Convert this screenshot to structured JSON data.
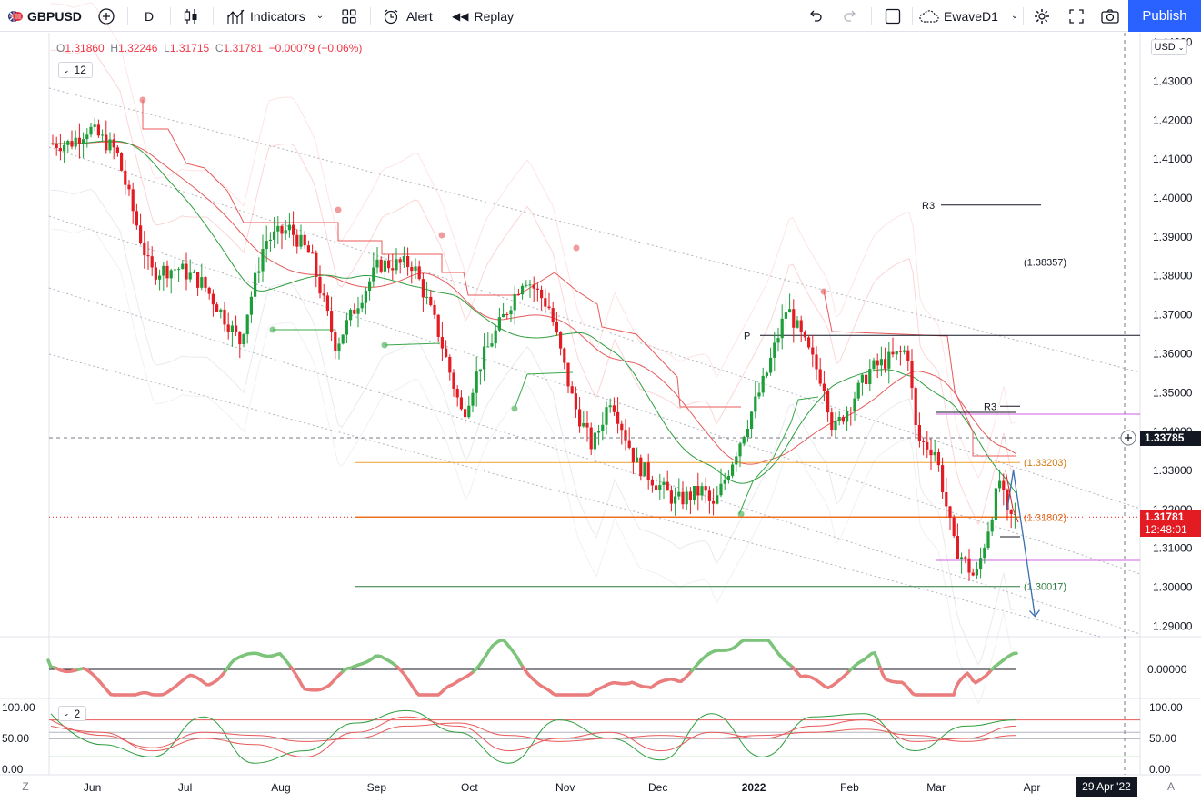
{
  "toolbar": {
    "symbol": "GBPUSD",
    "interval": "D",
    "indicators_label": "Indicators",
    "alert_label": "Alert",
    "replay_label": "Replay",
    "layout_name": "EwaveD1",
    "publish_label": "Publish"
  },
  "legend": {
    "o_label": "O",
    "o_value": "1.31860",
    "h_label": "H",
    "h_value": "1.32246",
    "l_label": "L",
    "l_value": "1.31715",
    "c_label": "C",
    "c_value": "1.31781",
    "change": "−0.00079 (−0.06%)",
    "indicator_count": "12",
    "pane2_count": "2"
  },
  "price_scale": {
    "currency": "USD",
    "crosshair_price": "1.33785",
    "last_price": "1.31781",
    "countdown": "12:48:01"
  },
  "time_scale": {
    "crosshair_date": "29 Apr '22",
    "left_button": "Z",
    "right_button": "A"
  },
  "colors": {
    "up": "#1e9e3a",
    "down": "#e31b23",
    "brand": "#2962ff",
    "orange": "#f0a030",
    "magenta": "#d060e0",
    "blue_arrow": "#3a6fb0"
  },
  "chart_data": [
    {
      "type": "candlestick",
      "title": "GBPUSD, D",
      "y_ticks": [
        "1.44000",
        "1.43000",
        "1.42000",
        "1.41000",
        "1.40000",
        "1.39000",
        "1.38000",
        "1.37000",
        "1.36000",
        "1.35000",
        "1.34000",
        "1.33000",
        "1.32000",
        "1.31000",
        "1.30000",
        "1.29000"
      ],
      "x_ticks": [
        "Jun",
        "Jul",
        "Aug",
        "Sep",
        "Oct",
        "Nov",
        "Dec",
        "2022",
        "Feb",
        "Mar",
        "Apr"
      ],
      "ylim": [
        1.2875,
        1.4425
      ],
      "grid": false,
      "close_path": [
        [
          "2021-05-26",
          1.414
        ],
        [
          "2021-06-01",
          1.418
        ],
        [
          "2021-06-10",
          1.412
        ],
        [
          "2021-06-17",
          1.392
        ],
        [
          "2021-06-21",
          1.381
        ],
        [
          "2021-06-30",
          1.382
        ],
        [
          "2021-07-08",
          1.378
        ],
        [
          "2021-07-20",
          1.363
        ],
        [
          "2021-07-28",
          1.389
        ],
        [
          "2021-08-05",
          1.392
        ],
        [
          "2021-08-12",
          1.385
        ],
        [
          "2021-08-20",
          1.362
        ],
        [
          "2021-08-27",
          1.373
        ],
        [
          "2021-09-03",
          1.383
        ],
        [
          "2021-09-14",
          1.383
        ],
        [
          "2021-09-22",
          1.366
        ],
        [
          "2021-09-30",
          1.344
        ],
        [
          "2021-10-06",
          1.358
        ],
        [
          "2021-10-20",
          1.38
        ],
        [
          "2021-10-28",
          1.372
        ],
        [
          "2021-11-05",
          1.347
        ],
        [
          "2021-11-11",
          1.336
        ],
        [
          "2021-11-17",
          1.349
        ],
        [
          "2021-11-25",
          1.332
        ],
        [
          "2021-12-08",
          1.322
        ],
        [
          "2021-12-17",
          1.325
        ],
        [
          "2021-12-20",
          1.32
        ],
        [
          "2022-01-06",
          1.354
        ],
        [
          "2022-01-13",
          1.372
        ],
        [
          "2022-01-25",
          1.352
        ],
        [
          "2022-01-28",
          1.34
        ],
        [
          "2022-02-09",
          1.356
        ],
        [
          "2022-02-21",
          1.361
        ],
        [
          "2022-02-24",
          1.338
        ],
        [
          "2022-03-02",
          1.335
        ],
        [
          "2022-03-08",
          1.311
        ],
        [
          "2022-03-15",
          1.302
        ],
        [
          "2022-03-23",
          1.328
        ],
        [
          "2022-03-25",
          1.318
        ]
      ],
      "horizontal_levels": [
        {
          "label": "R3",
          "value": 1.3982
        },
        {
          "label": "(1.38357)",
          "value": 1.38357
        },
        {
          "label": "P",
          "value": 1.3647
        },
        {
          "label": "R3",
          "value": 1.3465
        },
        {
          "label": "(1.33203)",
          "value": 1.33203
        },
        {
          "label": "(1.31802)",
          "value": 1.31802
        },
        {
          "label": "(1.30017)",
          "value": 1.30017
        }
      ],
      "projection": {
        "points": [
          [
            "2022-03-24",
            1.3198
          ],
          [
            "2022-03-26",
            1.33
          ],
          [
            "2022-04-02",
            1.2925
          ]
        ]
      }
    },
    {
      "type": "line",
      "title": "",
      "y_ticks": [
        "0.00000"
      ],
      "series": [
        {
          "values": [
            0.02,
            -0.01,
            0.04,
            0.01,
            -0.02,
            0.03,
            0.05,
            -0.04,
            0.01,
            0.0
          ]
        }
      ]
    },
    {
      "type": "line",
      "title": "",
      "y_ticks": [
        "100.00",
        "50.00",
        "0.00"
      ],
      "ylim": [
        0,
        100
      ],
      "levels": [
        80,
        50,
        20
      ],
      "series": [
        {
          "values": [
            90,
            40,
            20,
            85,
            10,
            30,
            75,
            95,
            60,
            10,
            80,
            50,
            15,
            90,
            20,
            85,
            90,
            30,
            70,
            80
          ]
        },
        {
          "values": [
            70,
            60,
            30,
            50,
            40,
            20,
            60,
            85,
            70,
            30,
            50,
            60,
            30,
            60,
            50,
            70,
            80,
            45,
            50,
            70
          ]
        },
        {
          "values": [
            80,
            55,
            35,
            60,
            55,
            45,
            50,
            70,
            75,
            55,
            45,
            50,
            55,
            50,
            55,
            60,
            65,
            55,
            45,
            55
          ]
        }
      ]
    }
  ]
}
